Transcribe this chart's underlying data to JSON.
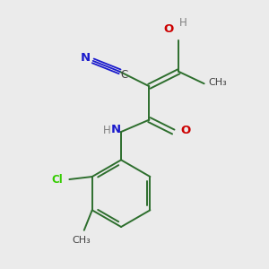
{
  "background_color": "#ebebeb",
  "bond_color": "#2d6e2d",
  "double_bond_color": "#2d6e2d",
  "triple_bond_color": "#1a1acc",
  "oxygen_color": "#cc0000",
  "nitrogen_color": "#1a1acc",
  "carbon_color": "#404040",
  "chlorine_color": "#33cc00",
  "h_color": "#808080",
  "figsize": [
    3.0,
    3.0
  ],
  "dpi": 100,
  "xlim": [
    0,
    10
  ],
  "ylim": [
    0,
    10
  ]
}
